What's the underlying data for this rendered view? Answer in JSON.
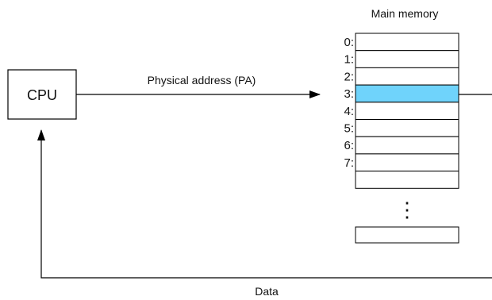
{
  "cpu": {
    "label": "CPU"
  },
  "memory": {
    "title": "Main memory",
    "addresses": [
      "0:",
      "1:",
      "2:",
      "3:",
      "4:",
      "5:",
      "6:",
      "7:"
    ],
    "highlighted_index": 3,
    "ellipsis": "⋮"
  },
  "edges": {
    "address": {
      "label": "Physical address (PA)"
    },
    "data": {
      "label": "Data"
    }
  },
  "colors": {
    "highlight": "#6fd3fb",
    "line": "#000000",
    "cell_fill": "#ffffff"
  }
}
